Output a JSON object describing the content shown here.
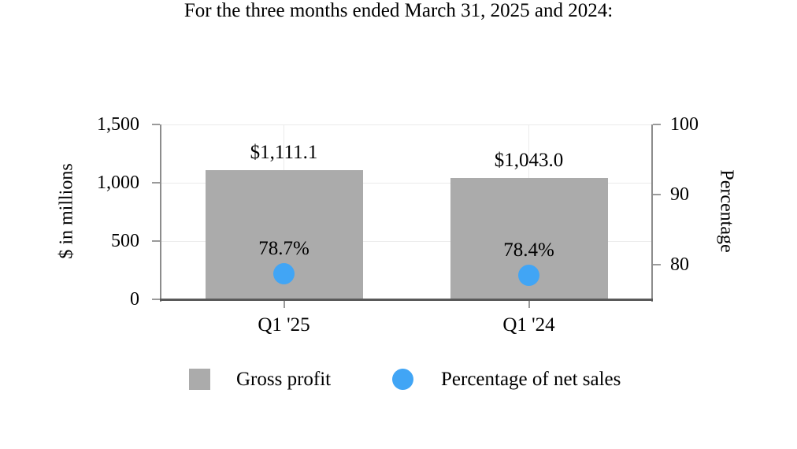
{
  "title": "For the three months ended March 31, 2025 and 2024:",
  "chart_data": {
    "type": "bar",
    "subtype": "combo-dual-axis-bar-and-points",
    "categories": [
      "Q1 '25",
      "Q1 '24"
    ],
    "series": [
      {
        "name": "Gross profit",
        "kind": "bar",
        "axis": "left",
        "values": [
          1111.1,
          1043.0
        ],
        "data_labels": [
          "$1,111.1",
          "$1,043.0"
        ],
        "color": "#ABABAB"
      },
      {
        "name": "Percentage of net sales",
        "kind": "point",
        "axis": "right",
        "values": [
          78.7,
          78.4
        ],
        "data_labels": [
          "78.7%",
          "78.4%"
        ],
        "color": "#41A5F5"
      }
    ],
    "left_axis": {
      "title": "$ in millions",
      "min": 0,
      "max": 1500,
      "ticks": [
        {
          "value": 0,
          "label": "0"
        },
        {
          "value": 500,
          "label": "500"
        },
        {
          "value": 1000,
          "label": "1,000"
        },
        {
          "value": 1500,
          "label": "1,500"
        }
      ]
    },
    "right_axis": {
      "title": "Percentage",
      "min": 75,
      "max": 100,
      "ticks": [
        {
          "value": 80,
          "label": "80"
        },
        {
          "value": 90,
          "label": "90"
        },
        {
          "value": 100,
          "label": "100"
        }
      ]
    },
    "grid": true,
    "legend_position": "bottom"
  },
  "legend": {
    "items": [
      {
        "label": "Gross profit",
        "swatch": "square",
        "color": "#ABABAB"
      },
      {
        "label": "Percentage of net sales",
        "swatch": "circle",
        "color": "#41A5F5"
      }
    ]
  },
  "colors": {
    "background": "#FFFFFF",
    "text": "#000000",
    "bar": "#ABABAB",
    "point": "#41A5F5",
    "gridline": "#EBEBEB",
    "y_axis_line": "#8C8C8C",
    "x_axis_line": "#595959",
    "tick_mark": "#9A9A9A"
  }
}
